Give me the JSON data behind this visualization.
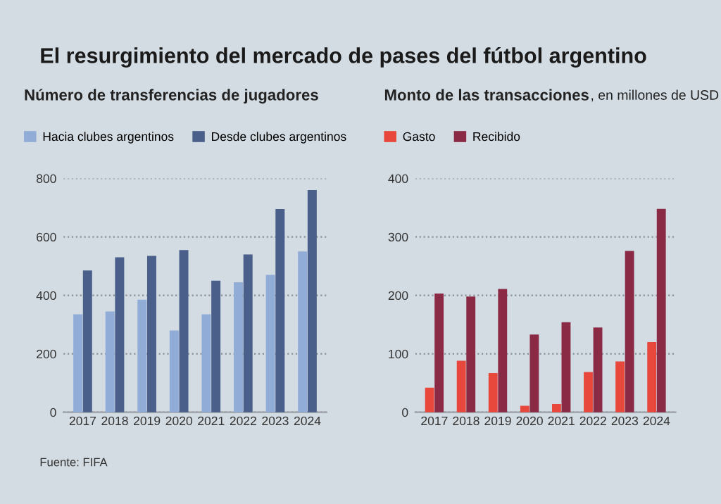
{
  "chart_data": [
    {
      "type": "bar",
      "title": "Número de transferencias de jugadores",
      "annotations": [
        "El resurgimiento del mercado de pases del fútbol argentino",
        "Fuente: FIFA"
      ],
      "categories": [
        "2017",
        "2018",
        "2019",
        "2020",
        "2021",
        "2022",
        "2023",
        "2024"
      ],
      "series": [
        {
          "name": "Hacia clubes argentinos",
          "color": "#91acd6",
          "values": [
            335,
            345,
            385,
            280,
            335,
            445,
            470,
            550
          ]
        },
        {
          "name": "Desde clubes argentinos",
          "color": "#4a5f8a",
          "values": [
            485,
            530,
            535,
            555,
            450,
            540,
            695,
            760
          ]
        }
      ],
      "ylim": [
        0,
        800
      ],
      "yticks": [
        0,
        200,
        400,
        600,
        800
      ],
      "grid": "y",
      "legend": "top left"
    },
    {
      "type": "bar",
      "title": "Monto de las transacciones",
      "subtitle": ", en millones de USD",
      "categories": [
        "2017",
        "2018",
        "2019",
        "2020",
        "2021",
        "2022",
        "2023",
        "2024"
      ],
      "series": [
        {
          "name": "Gasto",
          "color": "#e8473c",
          "values": [
            42,
            88,
            67,
            11,
            14,
            69,
            87,
            120
          ]
        },
        {
          "name": "Recibido",
          "color": "#8b2a45",
          "values": [
            203,
            198,
            211,
            133,
            154,
            145,
            276,
            348
          ]
        }
      ],
      "ylim": [
        0,
        400
      ],
      "yticks": [
        0,
        100,
        200,
        300,
        400
      ],
      "grid": "y",
      "legend": "top left"
    }
  ]
}
